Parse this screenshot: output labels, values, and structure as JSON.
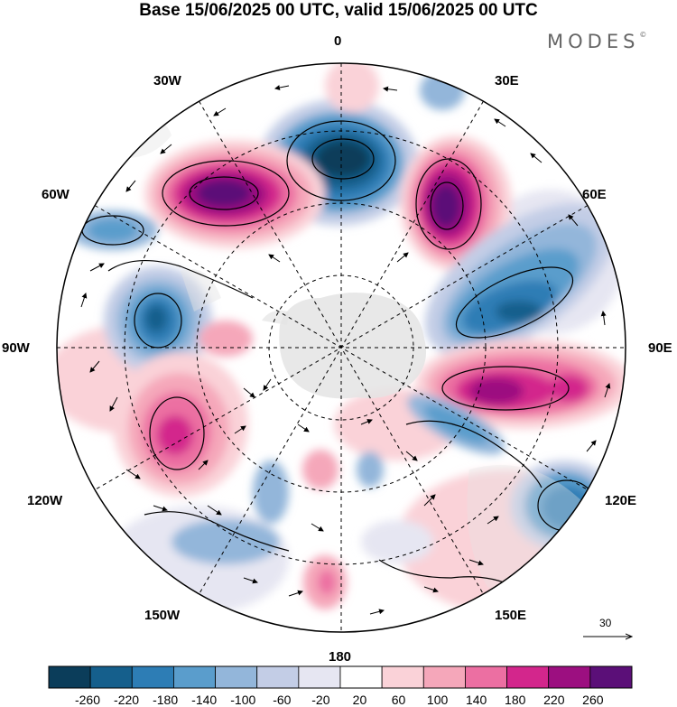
{
  "title": "Base 15/06/2025 00 UTC, valid 15/06/2025 00 UTC",
  "brand": {
    "text": "MODES",
    "mark": "©"
  },
  "longitude_labels": {
    "lon_0": "0",
    "lon_30e": "30E",
    "lon_60e": "60E",
    "lon_90e": "90E",
    "lon_120e": "120E",
    "lon_150e": "150E",
    "lon_180": "180",
    "lon_150w": "150W",
    "lon_120w": "120W",
    "lon_90w": "90W",
    "lon_60w": "60W",
    "lon_30w": "30W"
  },
  "vector_scale": {
    "label": "30"
  },
  "colorbar": {
    "ticks": [
      "-260",
      "-220",
      "-180",
      "-140",
      "-100",
      "-60",
      "-20",
      "20",
      "60",
      "100",
      "140",
      "180",
      "220",
      "260"
    ],
    "colors": [
      "#0b3d5a",
      "#155f8c",
      "#2d7db5",
      "#5a9dcc",
      "#93b6da",
      "#c3cde6",
      "#e6e6f2",
      "#ffffff",
      "#fad2d8",
      "#f5a7ba",
      "#ec6fa2",
      "#d3268c",
      "#9c0f80",
      "#5b0f78"
    ]
  },
  "map": {
    "projection": "polar stereographic, south pole",
    "land_color": "#e6e6e6",
    "anomaly_centers": [
      {
        "sign": "negative",
        "level": -260,
        "location": "between 0 and 30E, mid-latitudes"
      },
      {
        "sign": "positive",
        "level": 260,
        "location": "near 30W-60W"
      },
      {
        "sign": "positive",
        "level": 260,
        "location": "near 30E-60E"
      },
      {
        "sign": "negative",
        "level": -220,
        "location": "near 60E-90E"
      },
      {
        "sign": "positive",
        "level": 220,
        "location": "near 90E-120E"
      },
      {
        "sign": "negative",
        "level": -220,
        "location": "near 60W-90W"
      },
      {
        "sign": "positive",
        "level": 180,
        "location": "near 90W-120W"
      },
      {
        "sign": "negative",
        "level": -180,
        "location": "near 120E"
      }
    ]
  }
}
